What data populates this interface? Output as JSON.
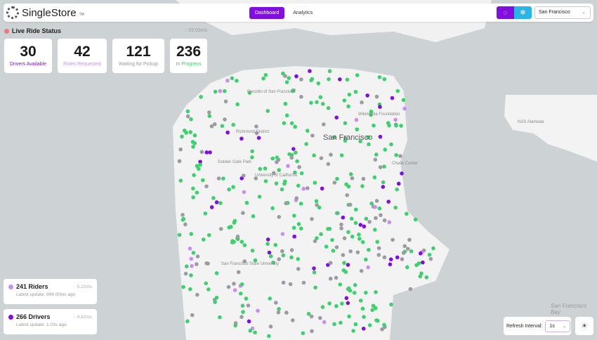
{
  "header": {
    "brand": "SingleStore",
    "trademark": "TM",
    "nav": [
      {
        "label": "Dashboard",
        "active": true
      },
      {
        "label": "Analytics",
        "active": false
      }
    ],
    "city_select": "San Francisco"
  },
  "status": {
    "title": "Live Ride Status",
    "latency": "23.02ms",
    "indicator_color": "#f07a7a"
  },
  "cards": [
    {
      "value": "30",
      "label": "Drivers Available",
      "color": "#820ddf"
    },
    {
      "value": "42",
      "label": "Rides Requested",
      "color": "#c98ff0"
    },
    {
      "value": "121",
      "label": "Waiting for Pickup",
      "color": "#999999"
    },
    {
      "value": "236",
      "label": "In Progress",
      "color": "#3ecf6e"
    }
  ],
  "panels": [
    {
      "title": "241 Riders",
      "subtitle": "Latest update: 994.00ms ago",
      "latency": "5.22ms",
      "color": "#c98ff0"
    },
    {
      "title": "266 Drivers",
      "subtitle": "Latest update: 1.03s ago",
      "latency": "4.82ms",
      "color": "#820ddf"
    }
  ],
  "refresh": {
    "label": "Refresh Interval:",
    "value": "1s"
  },
  "map": {
    "labels": [
      "San Francisco",
      "Presidio of San Francisco",
      "Richmond District",
      "Golden Gate Park",
      "University of California",
      "Wikimedia Foundation",
      "Chase Center",
      "San Francisco State University",
      "NAS Alameda",
      "San Francisco Bay"
    ],
    "colors": {
      "water": "#cdd2d5",
      "land": "#f3f3f3",
      "green": "#3ecf6e",
      "gray": "#9e9aa3",
      "purple": "#820ddf",
      "lilac": "#c98ff0"
    }
  }
}
